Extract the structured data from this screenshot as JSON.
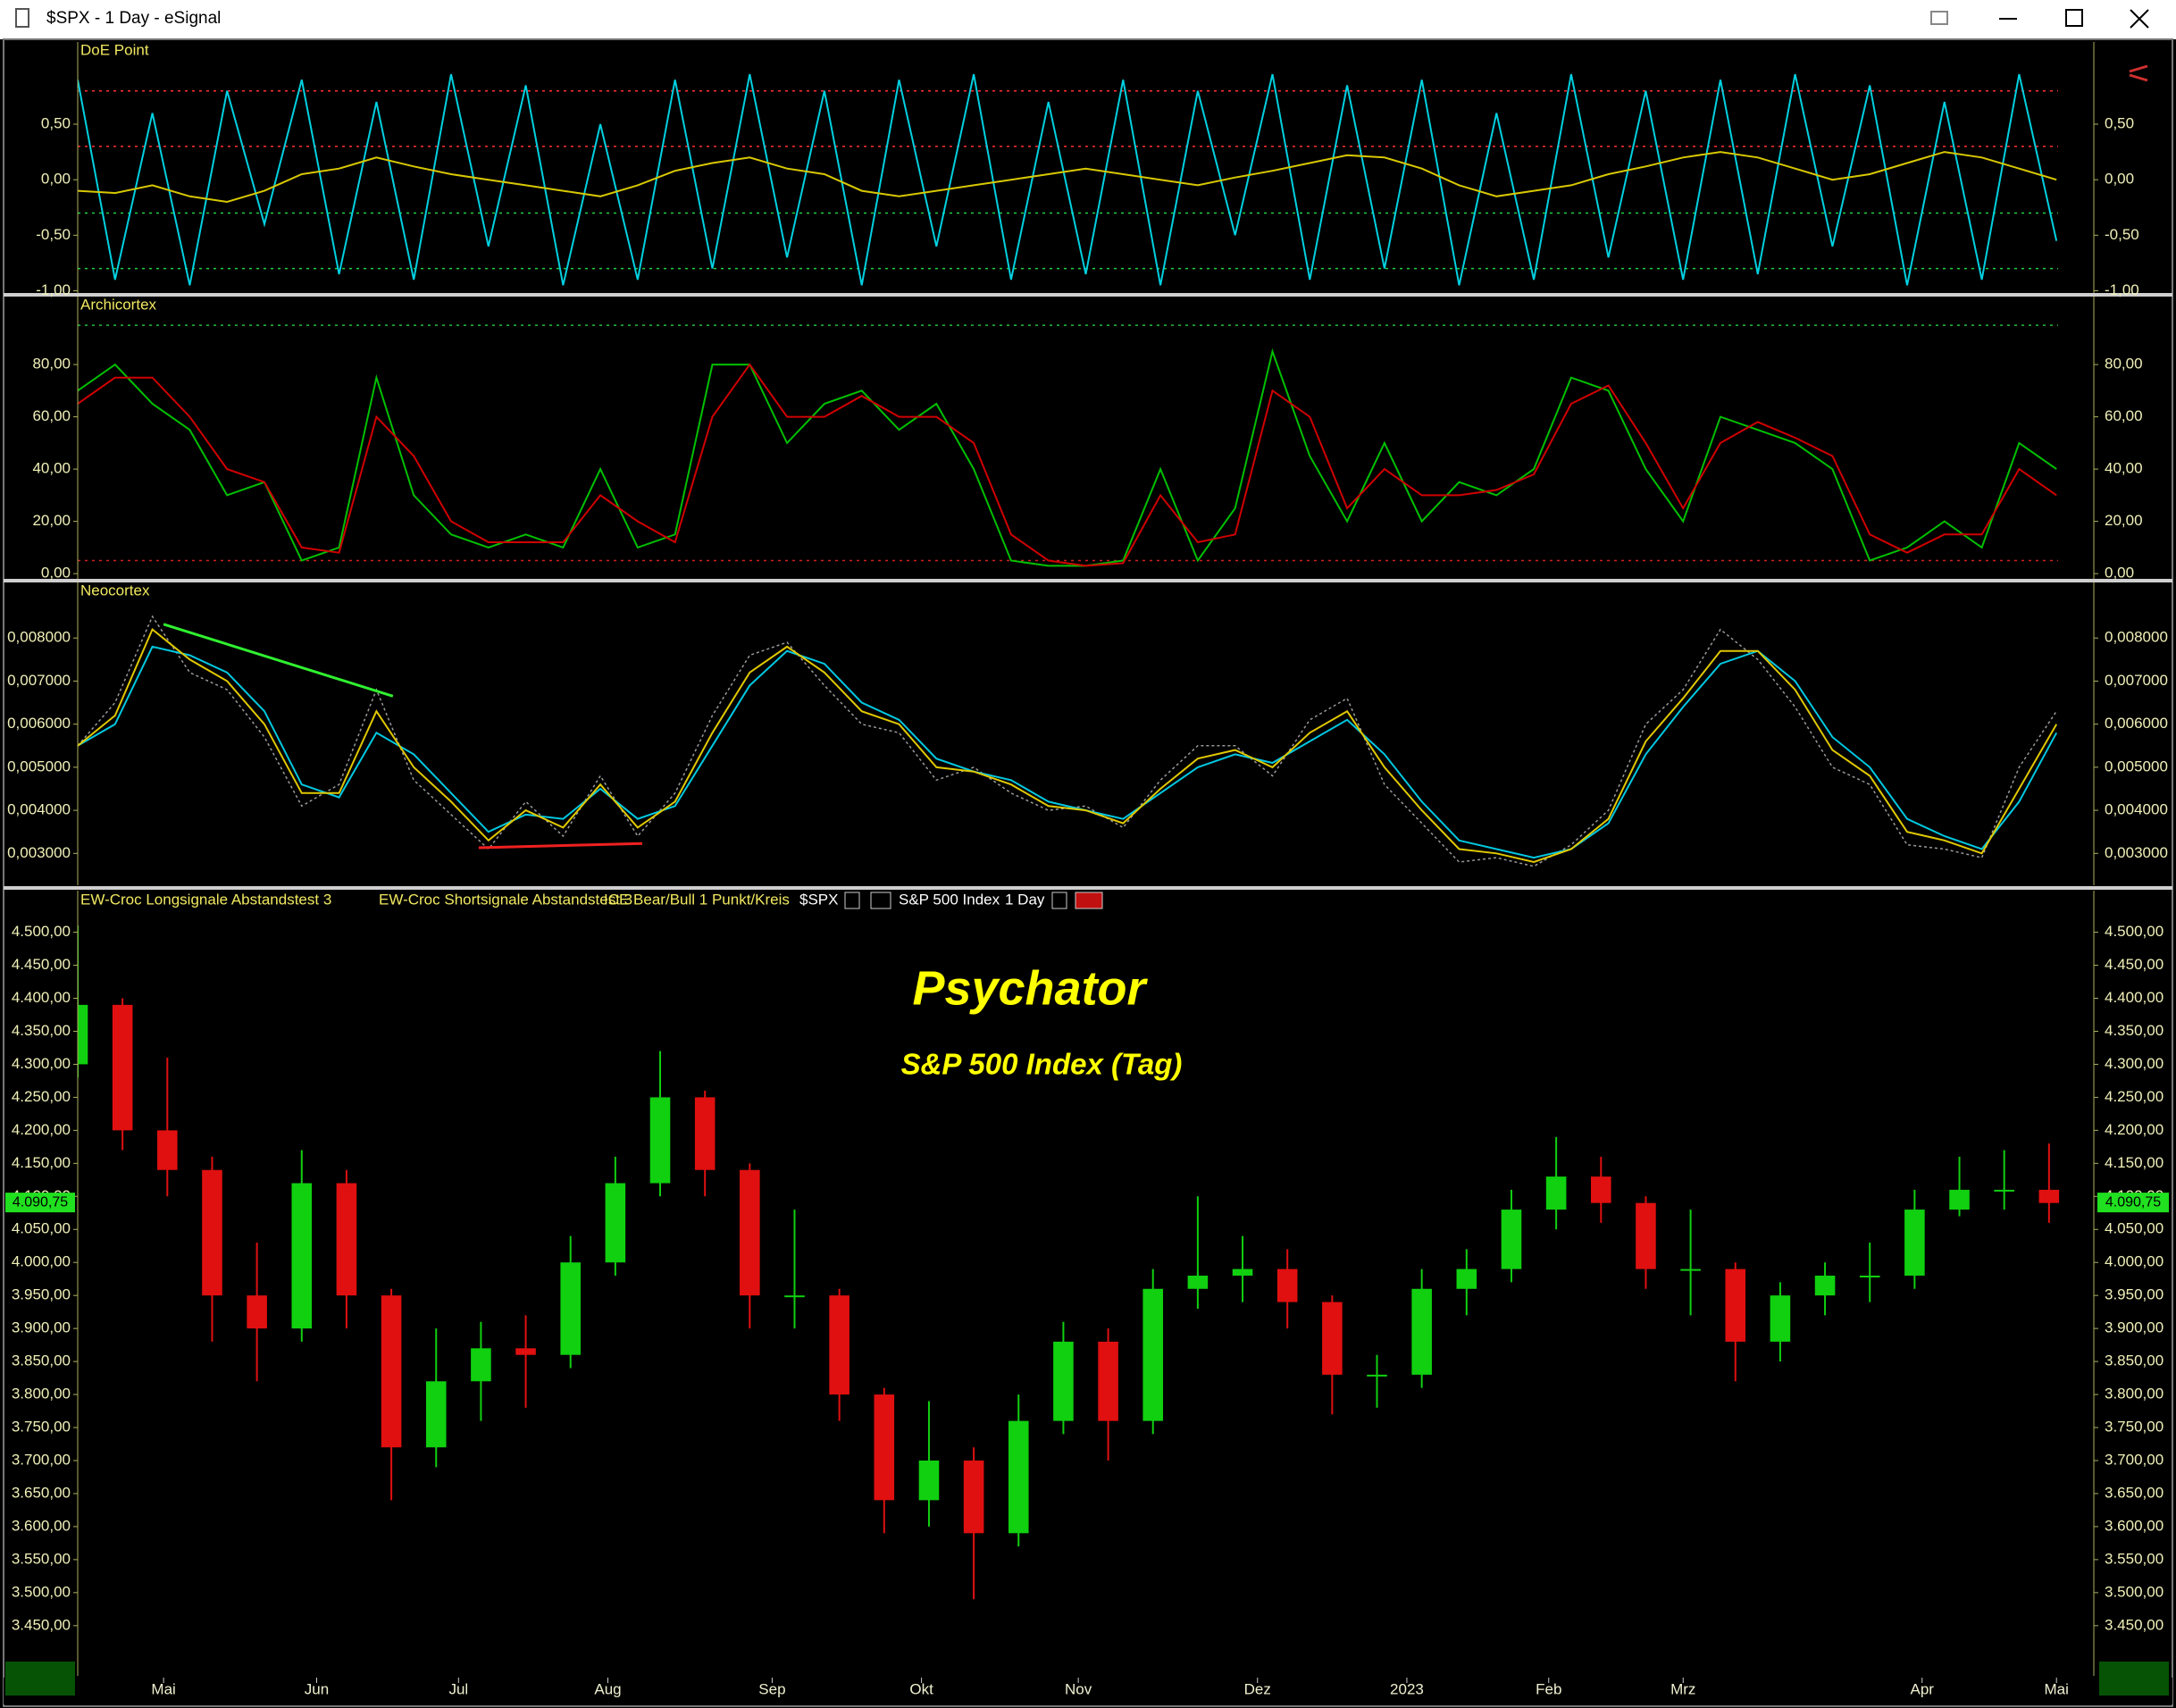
{
  "window": {
    "title": "$SPX - 1 Day - eSignal"
  },
  "chart_data": [
    {
      "type": "line",
      "title": "DoE Point",
      "x": [
        0,
        5,
        10,
        15,
        20,
        25,
        30,
        35,
        40,
        45,
        50,
        55,
        60,
        65,
        70,
        75,
        80,
        85,
        90,
        95,
        100,
        105,
        110,
        115,
        120,
        125,
        130,
        135,
        140,
        145,
        150,
        155,
        160,
        165,
        170,
        175,
        180,
        185,
        190,
        195,
        200,
        205,
        210,
        215,
        220,
        225,
        230,
        235,
        240,
        245,
        250,
        255,
        260,
        265
      ],
      "xlim": [
        0,
        270
      ],
      "ylim": [
        -1.02,
        1.24
      ],
      "yticks": [
        {
          "value": 0.5,
          "label": "0,50"
        },
        {
          "value": 0,
          "label": "0,00"
        },
        {
          "value": -0.5,
          "label": "-0,50"
        },
        {
          "value": -1,
          "label": "-1,00"
        }
      ],
      "levels": [
        {
          "value": 0.8,
          "color": "#ff3030"
        },
        {
          "value": 0.3,
          "color": "#ff3030"
        },
        {
          "value": -0.3,
          "color": "#20d040"
        },
        {
          "value": -0.8,
          "color": "#20d040"
        }
      ],
      "series": [
        {
          "color": "#00d0e0",
          "values": [
            0.9,
            -0.9,
            0.6,
            -0.95,
            0.8,
            -0.4,
            0.9,
            -0.85,
            0.7,
            -0.9,
            0.95,
            -0.6,
            0.85,
            -0.95,
            0.5,
            -0.9,
            0.9,
            -0.8,
            0.95,
            -0.7,
            0.8,
            -0.95,
            0.9,
            -0.6,
            0.95,
            -0.9,
            0.7,
            -0.85,
            0.9,
            -0.95,
            0.8,
            -0.5,
            0.95,
            -0.9,
            0.85,
            -0.8,
            0.9,
            -0.95,
            0.6,
            -0.9,
            0.95,
            -0.7,
            0.8,
            -0.9,
            0.9,
            -0.85,
            0.95,
            -0.6,
            0.85,
            -0.95,
            0.7,
            -0.9,
            0.95,
            -0.55
          ]
        },
        {
          "color": "#d8c800",
          "values": [
            -0.1,
            -0.12,
            -0.05,
            -0.15,
            -0.2,
            -0.1,
            0.05,
            0.1,
            0.2,
            0.12,
            0.05,
            0.0,
            -0.05,
            -0.1,
            -0.15,
            -0.05,
            0.08,
            0.15,
            0.2,
            0.1,
            0.05,
            -0.1,
            -0.15,
            -0.1,
            -0.05,
            0.0,
            0.05,
            0.1,
            0.05,
            0.0,
            -0.05,
            0.02,
            0.08,
            0.15,
            0.22,
            0.2,
            0.1,
            -0.05,
            -0.15,
            -0.1,
            -0.05,
            0.05,
            0.12,
            0.2,
            0.25,
            0.2,
            0.1,
            0.0,
            0.05,
            0.15,
            0.25,
            0.2,
            0.1,
            0.0
          ]
        }
      ]
    },
    {
      "type": "line",
      "title": "Archicortex",
      "x": [
        0,
        5,
        10,
        15,
        20,
        25,
        30,
        35,
        40,
        45,
        50,
        55,
        60,
        65,
        70,
        75,
        80,
        85,
        90,
        95,
        100,
        105,
        110,
        115,
        120,
        125,
        130,
        135,
        140,
        145,
        150,
        155,
        160,
        165,
        170,
        175,
        180,
        185,
        190,
        195,
        200,
        205,
        210,
        215,
        220,
        225,
        230,
        235,
        240,
        245,
        250,
        255,
        260,
        265
      ],
      "xlim": [
        0,
        270
      ],
      "ylim": [
        -2,
        106
      ],
      "yticks": [
        {
          "value": 0,
          "label": "0,00"
        },
        {
          "value": 20,
          "label": "20,00"
        },
        {
          "value": 40,
          "label": "40,00"
        },
        {
          "value": 60,
          "label": "60,00"
        },
        {
          "value": 80,
          "label": "80,00"
        }
      ],
      "levels": [
        {
          "value": 95,
          "color": "#20c040"
        },
        {
          "value": 5,
          "color": "#d02020"
        }
      ],
      "series": [
        {
          "color": "#00c000",
          "values": [
            70,
            80,
            65,
            55,
            30,
            35,
            5,
            10,
            75,
            30,
            15,
            10,
            15,
            10,
            40,
            10,
            15,
            80,
            80,
            50,
            65,
            70,
            55,
            65,
            40,
            5,
            3,
            3,
            5,
            40,
            5,
            25,
            85,
            45,
            20,
            50,
            20,
            35,
            30,
            40,
            75,
            70,
            40,
            20,
            60,
            55,
            50,
            40,
            5,
            10,
            20,
            10,
            50,
            40
          ]
        },
        {
          "color": "#d00000",
          "values": [
            65,
            75,
            75,
            60,
            40,
            35,
            10,
            8,
            60,
            45,
            20,
            12,
            12,
            12,
            30,
            20,
            12,
            60,
            80,
            60,
            60,
            68,
            60,
            60,
            50,
            15,
            5,
            3,
            4,
            30,
            12,
            15,
            70,
            60,
            25,
            40,
            30,
            30,
            32,
            38,
            65,
            72,
            50,
            25,
            50,
            58,
            52,
            45,
            15,
            8,
            15,
            15,
            40,
            30
          ]
        }
      ]
    },
    {
      "type": "line",
      "title": "Neocortex",
      "x": [
        0,
        5,
        10,
        15,
        20,
        25,
        30,
        35,
        40,
        45,
        50,
        55,
        60,
        65,
        70,
        75,
        80,
        85,
        90,
        95,
        100,
        105,
        110,
        115,
        120,
        125,
        130,
        135,
        140,
        145,
        150,
        155,
        160,
        165,
        170,
        175,
        180,
        185,
        190,
        195,
        200,
        205,
        210,
        215,
        220,
        225,
        230,
        235,
        240,
        245,
        250,
        255,
        260,
        265
      ],
      "xlim": [
        0,
        270
      ],
      "ylim": [
        0.00226,
        0.00929
      ],
      "yticks": [
        {
          "value": 0.003,
          "label": "0,003000"
        },
        {
          "value": 0.004,
          "label": "0,004000"
        },
        {
          "value": 0.005,
          "label": "0,005000"
        },
        {
          "value": 0.006,
          "label": "0,006000"
        },
        {
          "value": 0.007,
          "label": "0,007000"
        },
        {
          "value": 0.008,
          "label": "0,008000"
        }
      ],
      "series": [
        {
          "color": "#999999",
          "style": "dotted",
          "values": [
            0.0055,
            0.0065,
            0.0085,
            0.0072,
            0.0068,
            0.0057,
            0.0041,
            0.0046,
            0.0068,
            0.0047,
            0.0039,
            0.0031,
            0.0042,
            0.0034,
            0.0048,
            0.0034,
            0.0044,
            0.0062,
            0.0076,
            0.0079,
            0.0069,
            0.006,
            0.0058,
            0.0047,
            0.005,
            0.0044,
            0.004,
            0.0041,
            0.0036,
            0.0047,
            0.0055,
            0.0055,
            0.0048,
            0.0061,
            0.0066,
            0.0046,
            0.0037,
            0.0028,
            0.0029,
            0.0027,
            0.0032,
            0.004,
            0.006,
            0.0068,
            0.0082,
            0.0075,
            0.0064,
            0.005,
            0.0046,
            0.0032,
            0.0031,
            0.0029,
            0.005,
            0.0063
          ]
        },
        {
          "color": "#00c8e0",
          "values": [
            0.0055,
            0.006,
            0.0078,
            0.0076,
            0.0072,
            0.0063,
            0.0046,
            0.0043,
            0.0058,
            0.0053,
            0.0044,
            0.0035,
            0.0039,
            0.0038,
            0.0045,
            0.0038,
            0.0041,
            0.0055,
            0.0069,
            0.0077,
            0.0074,
            0.0065,
            0.0061,
            0.0052,
            0.0049,
            0.0047,
            0.0042,
            0.004,
            0.0038,
            0.0044,
            0.005,
            0.0053,
            0.0051,
            0.0056,
            0.0061,
            0.0053,
            0.0042,
            0.0033,
            0.0031,
            0.0029,
            0.0031,
            0.0037,
            0.0053,
            0.0064,
            0.0074,
            0.0077,
            0.007,
            0.0057,
            0.005,
            0.0038,
            0.0034,
            0.0031,
            0.0042,
            0.0058
          ]
        },
        {
          "color": "#e0c800",
          "values": [
            0.0055,
            0.0062,
            0.0082,
            0.0075,
            0.007,
            0.006,
            0.0044,
            0.0044,
            0.0063,
            0.005,
            0.0042,
            0.0033,
            0.004,
            0.0036,
            0.0046,
            0.0036,
            0.0042,
            0.0058,
            0.0072,
            0.0078,
            0.0072,
            0.0063,
            0.006,
            0.005,
            0.0049,
            0.0046,
            0.0041,
            0.004,
            0.0037,
            0.0045,
            0.0052,
            0.0054,
            0.005,
            0.0058,
            0.0063,
            0.005,
            0.004,
            0.0031,
            0.003,
            0.0028,
            0.0031,
            0.0038,
            0.0056,
            0.0066,
            0.0077,
            0.0077,
            0.0068,
            0.0054,
            0.0048,
            0.0035,
            0.0033,
            0.003,
            0.0045,
            0.006
          ]
        }
      ],
      "trendlines": [
        {
          "color": "#30f030",
          "x": [
            11.5,
            42.2
          ],
          "values": [
            0.00832,
            0.00665
          ]
        },
        {
          "color": "#f02020",
          "x": [
            53.7,
            75.6
          ],
          "values": [
            0.00313,
            0.00323
          ]
        }
      ]
    },
    {
      "type": "candlestick",
      "indicators": [
        "EW-Croc Longsignale Abstandstest 3",
        "EW-Croc Shortsignale Abstandstest 3",
        "ICE Bear/Bull 1 Punkt/Kreis"
      ],
      "symbol": "$SPX",
      "instrument": "S&P 500 Index",
      "interval": "1 Day",
      "title": "Psychator",
      "subtitle": "S&P 500 Index (Tag)",
      "x": [
        0,
        6,
        12,
        18,
        24,
        30,
        36,
        42,
        48,
        54,
        60,
        66,
        72,
        78,
        84,
        90,
        96,
        102,
        108,
        114,
        120,
        126,
        132,
        138,
        144,
        150,
        156,
        162,
        168,
        174,
        180,
        186,
        192,
        198,
        204,
        210,
        216,
        222,
        228,
        234,
        240,
        246,
        252,
        258,
        264
      ],
      "xlim": [
        0,
        270
      ],
      "ylim": [
        3374,
        4563
      ],
      "up_color": "#10d010",
      "down_color": "#e01010",
      "open": [
        4300,
        4390,
        4200,
        4140,
        3950,
        3900,
        4120,
        3950,
        3720,
        3820,
        3870,
        3860,
        4000,
        4120,
        4250,
        4140,
        3950,
        3950,
        3800,
        3640,
        3700,
        3590,
        3760,
        3880,
        3760,
        3960,
        3980,
        3990,
        3940,
        3830,
        3830,
        3960,
        3990,
        4080,
        4130,
        4090,
        3990,
        3990,
        3880,
        3950,
        3980,
        3980,
        4080,
        4110,
        4110
      ],
      "high": [
        4510,
        4400,
        4310,
        4160,
        4030,
        4170,
        4140,
        3960,
        3900,
        3910,
        3920,
        4040,
        4160,
        4320,
        4260,
        4150,
        4080,
        3960,
        3810,
        3790,
        3720,
        3800,
        3910,
        3900,
        3990,
        4100,
        4040,
        4020,
        3950,
        3860,
        3990,
        4020,
        4110,
        4190,
        4160,
        4100,
        4080,
        4000,
        3970,
        4000,
        4030,
        4110,
        4160,
        4170,
        4180
      ],
      "low": [
        4280,
        4170,
        4100,
        3880,
        3820,
        3880,
        3900,
        3640,
        3690,
        3760,
        3780,
        3840,
        3980,
        4100,
        4100,
        3900,
        3900,
        3760,
        3590,
        3600,
        3490,
        3570,
        3740,
        3700,
        3740,
        3930,
        3940,
        3900,
        3770,
        3780,
        3810,
        3920,
        3970,
        4050,
        4060,
        3960,
        3920,
        3820,
        3850,
        3920,
        3940,
        3960,
        4070,
        4080,
        4060
      ],
      "close": [
        4390,
        4200,
        4140,
        3950,
        3900,
        4120,
        3950,
        3720,
        3820,
        3870,
        3860,
        4000,
        4120,
        4250,
        4140,
        3950,
        3950,
        3800,
        3640,
        3700,
        3590,
        3760,
        3880,
        3760,
        3960,
        3980,
        3990,
        3940,
        3830,
        3830,
        3960,
        3990,
        4080,
        4130,
        4090,
        3990,
        3990,
        3880,
        3950,
        3980,
        3980,
        4080,
        4110,
        4110,
        4090
      ],
      "last_price": {
        "value": 4090.75,
        "label": "4.090,75"
      },
      "yticks": [
        {
          "value": 3450,
          "label": "3.450,00"
        },
        {
          "value": 3500,
          "label": "3.500,00"
        },
        {
          "value": 3550,
          "label": "3.550,00"
        },
        {
          "value": 3600,
          "label": "3.600,00"
        },
        {
          "value": 3650,
          "label": "3.650,00"
        },
        {
          "value": 3700,
          "label": "3.700,00"
        },
        {
          "value": 3750,
          "label": "3.750,00"
        },
        {
          "value": 3800,
          "label": "3.800,00"
        },
        {
          "value": 3850,
          "label": "3.850,00"
        },
        {
          "value": 3900,
          "label": "3.900,00"
        },
        {
          "value": 3950,
          "label": "3.950,00"
        },
        {
          "value": 4000,
          "label": "4.000,00"
        },
        {
          "value": 4050,
          "label": "4.050,00"
        },
        {
          "value": 4100,
          "label": "4.100,00"
        },
        {
          "value": 4150,
          "label": "4.150,00"
        },
        {
          "value": 4200,
          "label": "4.200,00"
        },
        {
          "value": 4250,
          "label": "4.250,00"
        },
        {
          "value": 4300,
          "label": "4.300,00"
        },
        {
          "value": 4350,
          "label": "4.350,00"
        },
        {
          "value": 4400,
          "label": "4.400,00"
        },
        {
          "value": 4450,
          "label": "4.450,00"
        },
        {
          "value": 4500,
          "label": "4.500,00"
        }
      ],
      "xticks": [
        {
          "value": 11.5,
          "label": "Mai"
        },
        {
          "value": 32,
          "label": "Jun"
        },
        {
          "value": 51,
          "label": "Jul"
        },
        {
          "value": 71,
          "label": "Aug"
        },
        {
          "value": 93,
          "label": "Sep"
        },
        {
          "value": 113,
          "label": "Okt"
        },
        {
          "value": 134,
          "label": "Nov"
        },
        {
          "value": 158,
          "label": "Dez"
        },
        {
          "value": 178,
          "label": "2023"
        },
        {
          "value": 197,
          "label": "Feb"
        },
        {
          "value": 215,
          "label": "Mrz"
        },
        {
          "value": 247,
          "label": "Apr"
        },
        {
          "value": 265,
          "label": "Mai"
        }
      ]
    }
  ]
}
